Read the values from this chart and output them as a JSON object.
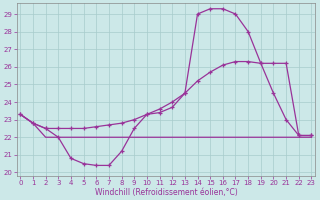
{
  "bg_color": "#cce8e8",
  "grid_color": "#a8cccc",
  "line_color": "#993399",
  "xlabel": "Windchill (Refroidissement éolien,°C)",
  "ylim_min": 19.8,
  "ylim_max": 29.6,
  "xlim_min": -0.3,
  "xlim_max": 23.3,
  "yticks": [
    20,
    21,
    22,
    23,
    24,
    25,
    26,
    27,
    28,
    29
  ],
  "xticks": [
    0,
    1,
    2,
    3,
    4,
    5,
    6,
    7,
    8,
    9,
    10,
    11,
    12,
    13,
    14,
    15,
    16,
    17,
    18,
    19,
    20,
    21,
    22,
    23
  ],
  "curve1_x": [
    0,
    1,
    2,
    3,
    4,
    5,
    6,
    7,
    8,
    9,
    10,
    11,
    12,
    13,
    14,
    15,
    16,
    17,
    18,
    19,
    20,
    21,
    22,
    23
  ],
  "curve1_y": [
    23.3,
    22.8,
    22.5,
    22.0,
    20.8,
    20.5,
    20.4,
    20.4,
    21.2,
    22.5,
    23.3,
    23.4,
    23.7,
    24.5,
    29.0,
    29.3,
    29.3,
    29.0,
    28.0,
    26.2,
    24.5,
    23.0,
    22.1,
    22.1
  ],
  "curve2_x": [
    0,
    1,
    2,
    3,
    4,
    5,
    6,
    7,
    8,
    9,
    10,
    11,
    12,
    13,
    14,
    15,
    16,
    17,
    18,
    19,
    20,
    21,
    22,
    23
  ],
  "curve2_y": [
    23.3,
    22.8,
    22.0,
    22.0,
    22.0,
    22.0,
    22.0,
    22.0,
    22.0,
    22.0,
    22.0,
    22.0,
    22.0,
    22.0,
    22.0,
    22.0,
    22.0,
    22.0,
    22.0,
    22.0,
    22.0,
    22.0,
    22.0,
    22.0
  ],
  "curve3_x": [
    0,
    1,
    2,
    3,
    4,
    5,
    6,
    7,
    8,
    9,
    10,
    11,
    12,
    13,
    14,
    15,
    16,
    17,
    18,
    19,
    20,
    21,
    22,
    23
  ],
  "curve3_y": [
    23.3,
    22.8,
    22.5,
    22.5,
    22.5,
    22.5,
    22.6,
    22.7,
    22.8,
    23.0,
    23.3,
    23.6,
    24.0,
    24.5,
    25.2,
    25.7,
    26.1,
    26.3,
    26.3,
    26.2,
    26.2,
    26.2,
    22.1,
    22.1
  ]
}
